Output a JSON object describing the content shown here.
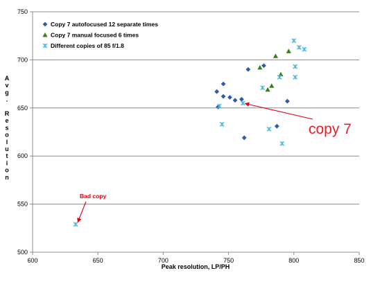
{
  "chart_data": {
    "type": "scatter",
    "title": "",
    "xlabel": "Peak resolution, LP/PH",
    "ylabel": "Avg. Resolution",
    "xlim": [
      600,
      850
    ],
    "ylim": [
      500,
      750
    ],
    "x_ticks": [
      600,
      650,
      700,
      750,
      800,
      850
    ],
    "y_ticks": [
      500,
      550,
      600,
      650,
      700,
      750
    ],
    "grid": "horizontal",
    "legend_position": "top-left",
    "series": [
      {
        "name": "Copy 7 autofocused 12 separate times",
        "marker": "diamond",
        "color": "#2a5ca8",
        "points": [
          {
            "x": 741,
            "y": 667
          },
          {
            "x": 742,
            "y": 651
          },
          {
            "x": 746,
            "y": 675
          },
          {
            "x": 746,
            "y": 662
          },
          {
            "x": 751,
            "y": 661
          },
          {
            "x": 755,
            "y": 658
          },
          {
            "x": 760,
            "y": 659
          },
          {
            "x": 762,
            "y": 619
          },
          {
            "x": 765,
            "y": 690
          },
          {
            "x": 777,
            "y": 694
          },
          {
            "x": 787,
            "y": 631
          },
          {
            "x": 795,
            "y": 657
          }
        ]
      },
      {
        "name": "Copy 7 manual focused 6 times",
        "marker": "triangle",
        "color": "#3a7d1e",
        "points": [
          {
            "x": 774,
            "y": 692
          },
          {
            "x": 780,
            "y": 669
          },
          {
            "x": 783,
            "y": 673
          },
          {
            "x": 786,
            "y": 704
          },
          {
            "x": 790,
            "y": 685
          },
          {
            "x": 796,
            "y": 709
          }
        ]
      },
      {
        "name": "Different copies of 85 f/1.8",
        "marker": "x-star",
        "color": "#4bb8d8",
        "points": [
          {
            "x": 633,
            "y": 529
          },
          {
            "x": 743,
            "y": 652
          },
          {
            "x": 745,
            "y": 633
          },
          {
            "x": 761,
            "y": 655
          },
          {
            "x": 776,
            "y": 671
          },
          {
            "x": 781,
            "y": 628
          },
          {
            "x": 789,
            "y": 682
          },
          {
            "x": 791,
            "y": 613
          },
          {
            "x": 800,
            "y": 720
          },
          {
            "x": 801,
            "y": 693
          },
          {
            "x": 801,
            "y": 682
          },
          {
            "x": 804,
            "y": 713
          },
          {
            "x": 808,
            "y": 711
          }
        ]
      }
    ],
    "annotations": [
      {
        "text": "Bad copy",
        "color": "#e0000f",
        "points_to": {
          "x": 633,
          "y": 529
        }
      },
      {
        "text": "copy 7",
        "color": "#ee1c24",
        "points_to": {
          "x": 761,
          "y": 655
        }
      }
    ]
  }
}
